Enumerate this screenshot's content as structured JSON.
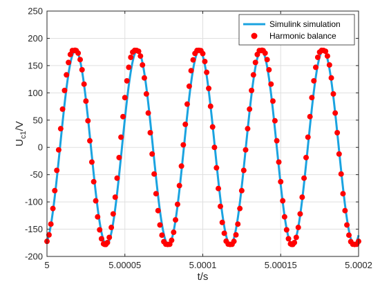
{
  "chart_data": {
    "type": "line",
    "xlabel": "t/s",
    "ylabel_main": "U",
    "ylabel_sub": "c1",
    "ylabel_unit": "/V",
    "xlim": [
      5,
      5.0002
    ],
    "ylim": [
      -200,
      250
    ],
    "xticks": [
      5,
      5.00005,
      5.0001,
      5.00015,
      5.0002
    ],
    "xtick_labels": [
      "5",
      "5.00005",
      "5.0001",
      "5.00015",
      "5.0002"
    ],
    "yticks": [
      -200,
      -150,
      -100,
      -50,
      0,
      50,
      100,
      150,
      200,
      250
    ],
    "ytick_labels": [
      "-200",
      "-150",
      "-100",
      "-50",
      "0",
      "50",
      "100",
      "150",
      "200",
      "250"
    ],
    "grid": true,
    "legend_position": "top-right",
    "signal": {
      "amplitude": 178,
      "period": 3.976e-05,
      "first_peak_t": 5.0000183,
      "t_start": 5,
      "t_end": 5.0002,
      "samples": 201
    },
    "series": [
      {
        "name": "Simulink simulation",
        "style": "line",
        "color": "#1aa3e0"
      },
      {
        "name": "Harmonic balance",
        "style": "markers",
        "color": "#ff0000",
        "points": [
          [
            5.0,
            -172.3
          ],
          [
            5.0000013,
            -160.4
          ],
          [
            5.0000025,
            -140.7
          ],
          [
            5.0000038,
            -112.1
          ],
          [
            5.000005,
            -79.3
          ],
          [
            5.0000063,
            -42.2
          ],
          [
            5.0000075,
            -4.6
          ],
          [
            5.0000088,
            34.3
          ],
          [
            5.00001,
            70.1
          ],
          [
            5.0000113,
            104.4
          ],
          [
            5.0000125,
            133.0
          ],
          [
            5.0000138,
            155.7
          ],
          [
            5.000015,
            170.4
          ],
          [
            5.0000163,
            177.6
          ],
          [
            5.0000175,
            177.5
          ],
          [
            5.000018,
            178.0
          ],
          [
            5.0000188,
            177.5
          ],
          [
            5.00002,
            172.9
          ],
          [
            5.0000213,
            161.0
          ],
          [
            5.0000225,
            142.3
          ],
          [
            5.0000238,
            116.0
          ],
          [
            5.000025,
            84.9
          ],
          [
            5.0000263,
            48.8
          ],
          [
            5.0000275,
            12.1
          ],
          [
            5.0000288,
            -26.9
          ],
          [
            5.00003,
            -63.0
          ],
          [
            5.0000313,
            -98.0
          ],
          [
            5.0000325,
            -127.4
          ],
          [
            5.0000338,
            -151.2
          ],
          [
            5.000035,
            -167.5
          ],
          [
            5.0000363,
            -176.8
          ],
          [
            5.000037,
            -177.8
          ],
          [
            5.0000378,
            -177.9
          ],
          [
            5.0000388,
            -174.6
          ],
          [
            5.00004,
            -165.1
          ],
          [
            5.0000413,
            -146.8
          ],
          [
            5.0000425,
            -122.0
          ],
          [
            5.0000438,
            -91.3
          ],
          [
            5.000045,
            -56.4
          ],
          [
            5.0000463,
            -18.7
          ],
          [
            5.0000475,
            18.7
          ],
          [
            5.0000488,
            56.4
          ],
          [
            5.00005,
            91.3
          ],
          [
            5.0000513,
            122.0
          ],
          [
            5.0000525,
            146.8
          ],
          [
            5.0000538,
            165.1
          ],
          [
            5.000055,
            174.6
          ],
          [
            5.0000563,
            177.9
          ],
          [
            5.0000575,
            177.8
          ],
          [
            5.0000588,
            176.2
          ],
          [
            5.00006,
            167.5
          ],
          [
            5.0000613,
            151.2
          ],
          [
            5.0000625,
            127.4
          ],
          [
            5.0000638,
            98.0
          ],
          [
            5.000065,
            63.0
          ],
          [
            5.0000663,
            26.9
          ],
          [
            5.0000675,
            -12.1
          ],
          [
            5.0000688,
            -48.8
          ],
          [
            5.00007,
            -84.9
          ],
          [
            5.0000713,
            -116.0
          ],
          [
            5.0000725,
            -142.3
          ],
          [
            5.0000738,
            -161.0
          ],
          [
            5.000075,
            -172.9
          ],
          [
            5.0000763,
            -177.5
          ],
          [
            5.0000775,
            -177.9
          ],
          [
            5.0000788,
            -177.6
          ],
          [
            5.00008,
            -170.4
          ],
          [
            5.0000813,
            -155.7
          ],
          [
            5.0000825,
            -133.0
          ],
          [
            5.0000838,
            -104.4
          ],
          [
            5.000085,
            -70.1
          ],
          [
            5.0000863,
            -34.3
          ],
          [
            5.0000875,
            4.6
          ],
          [
            5.0000888,
            42.2
          ],
          [
            5.00009,
            79.3
          ],
          [
            5.0000913,
            112.1
          ],
          [
            5.0000925,
            140.7
          ],
          [
            5.0000938,
            160.4
          ],
          [
            5.000095,
            172.3
          ],
          [
            5.0000963,
            177.7
          ],
          [
            5.0000975,
            177.9
          ],
          [
            5.0000988,
            177.4
          ],
          [
            5.0001,
            172.0
          ],
          [
            5.0001013,
            157.5
          ],
          [
            5.0001025,
            137.6
          ],
          [
            5.0001038,
            108.2
          ],
          [
            5.000105,
            75.4
          ],
          [
            5.0001063,
            37.5
          ],
          [
            5.0001075,
            0.0
          ],
          [
            5.0001088,
            -37.5
          ],
          [
            5.00011,
            -75.4
          ],
          [
            5.0001113,
            -108.2
          ],
          [
            5.0001125,
            -137.6
          ],
          [
            5.0001138,
            -157.5
          ],
          [
            5.000115,
            -172.0
          ],
          [
            5.0001163,
            -177.4
          ],
          [
            5.0001175,
            -177.9
          ],
          [
            5.0001188,
            -177.7
          ],
          [
            5.00012,
            -172.3
          ],
          [
            5.0001213,
            -160.4
          ],
          [
            5.0001225,
            -140.7
          ],
          [
            5.0001238,
            -112.1
          ],
          [
            5.000125,
            -79.3
          ],
          [
            5.0001263,
            -42.2
          ],
          [
            5.0001275,
            -4.6
          ],
          [
            5.0001288,
            34.3
          ],
          [
            5.00013,
            70.1
          ],
          [
            5.0001313,
            104.4
          ],
          [
            5.0001325,
            133.0
          ],
          [
            5.0001338,
            155.7
          ],
          [
            5.000135,
            170.4
          ],
          [
            5.0001363,
            177.6
          ],
          [
            5.0001375,
            177.5
          ],
          [
            5.000138,
            178.0
          ],
          [
            5.0001388,
            177.5
          ],
          [
            5.00014,
            172.9
          ],
          [
            5.0001413,
            161.0
          ],
          [
            5.0001425,
            142.3
          ],
          [
            5.0001438,
            116.0
          ],
          [
            5.000145,
            84.9
          ],
          [
            5.0001463,
            48.8
          ],
          [
            5.0001475,
            12.1
          ],
          [
            5.0001488,
            -26.9
          ],
          [
            5.00015,
            -63.0
          ],
          [
            5.0001513,
            -98.0
          ],
          [
            5.0001525,
            -127.4
          ],
          [
            5.0001538,
            -151.2
          ],
          [
            5.000155,
            -167.5
          ],
          [
            5.0001563,
            -176.8
          ],
          [
            5.000157,
            -177.8
          ],
          [
            5.0001578,
            -177.9
          ],
          [
            5.0001588,
            -174.6
          ],
          [
            5.00016,
            -165.1
          ],
          [
            5.0001613,
            -146.8
          ],
          [
            5.0001625,
            -122.0
          ],
          [
            5.0001638,
            -91.3
          ],
          [
            5.000165,
            -56.4
          ],
          [
            5.0001663,
            -18.7
          ],
          [
            5.0001675,
            18.7
          ],
          [
            5.0001688,
            56.4
          ],
          [
            5.00017,
            91.3
          ],
          [
            5.0001713,
            122.0
          ],
          [
            5.0001725,
            146.8
          ],
          [
            5.0001738,
            165.1
          ],
          [
            5.000175,
            174.6
          ],
          [
            5.0001763,
            177.9
          ],
          [
            5.0001775,
            177.8
          ],
          [
            5.0001788,
            176.2
          ],
          [
            5.00018,
            167.5
          ],
          [
            5.0001813,
            151.2
          ],
          [
            5.0001825,
            127.4
          ],
          [
            5.0001838,
            98.0
          ],
          [
            5.000185,
            63.0
          ],
          [
            5.0001863,
            26.9
          ],
          [
            5.0001875,
            -12.1
          ],
          [
            5.0001888,
            -48.8
          ],
          [
            5.00019,
            -84.9
          ],
          [
            5.0001913,
            -116.0
          ],
          [
            5.0001925,
            -142.3
          ],
          [
            5.0001938,
            -161.0
          ],
          [
            5.000195,
            -172.9
          ],
          [
            5.0001963,
            -177.5
          ],
          [
            5.0001975,
            -177.9
          ],
          [
            5.0001988,
            -177.6
          ],
          [
            5.0002,
            -172.3
          ]
        ]
      }
    ]
  }
}
